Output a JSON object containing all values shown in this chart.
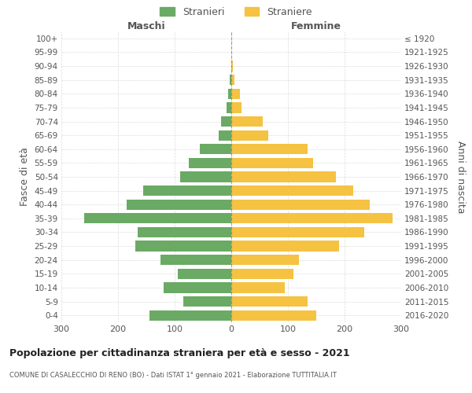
{
  "age_groups": [
    "100+",
    "95-99",
    "90-94",
    "85-89",
    "80-84",
    "75-79",
    "70-74",
    "65-69",
    "60-64",
    "55-59",
    "50-54",
    "45-49",
    "40-44",
    "35-39",
    "30-34",
    "25-29",
    "20-24",
    "15-19",
    "10-14",
    "5-9",
    "0-4"
  ],
  "birth_years": [
    "≤ 1920",
    "1921-1925",
    "1926-1930",
    "1931-1935",
    "1936-1940",
    "1941-1945",
    "1946-1950",
    "1951-1955",
    "1956-1960",
    "1961-1965",
    "1966-1970",
    "1971-1975",
    "1976-1980",
    "1981-1985",
    "1986-1990",
    "1991-1995",
    "1996-2000",
    "2001-2005",
    "2006-2010",
    "2011-2015",
    "2016-2020"
  ],
  "maschi": [
    0,
    0,
    0,
    3,
    5,
    8,
    18,
    22,
    55,
    75,
    90,
    155,
    185,
    260,
    165,
    170,
    125,
    95,
    120,
    85,
    145
  ],
  "femmine": [
    0,
    0,
    3,
    5,
    15,
    18,
    55,
    65,
    135,
    145,
    185,
    215,
    245,
    285,
    235,
    190,
    120,
    110,
    95,
    135,
    150
  ],
  "male_color": "#6aaa64",
  "female_color": "#f5c242",
  "background_color": "#ffffff",
  "grid_color": "#cccccc",
  "text_color": "#555555",
  "title": "Popolazione per cittadinanza straniera per età e sesso - 2021",
  "subtitle": "COMUNE DI CASALECCHIO DI RENO (BO) - Dati ISTAT 1° gennaio 2021 - Elaborazione TUTTITALIA.IT",
  "xlabel_left": "Maschi",
  "xlabel_right": "Femmine",
  "ylabel_left": "Fasce di età",
  "ylabel_right": "Anni di nascita",
  "legend_maschi": "Stranieri",
  "legend_femmine": "Straniere",
  "xlim": 300
}
